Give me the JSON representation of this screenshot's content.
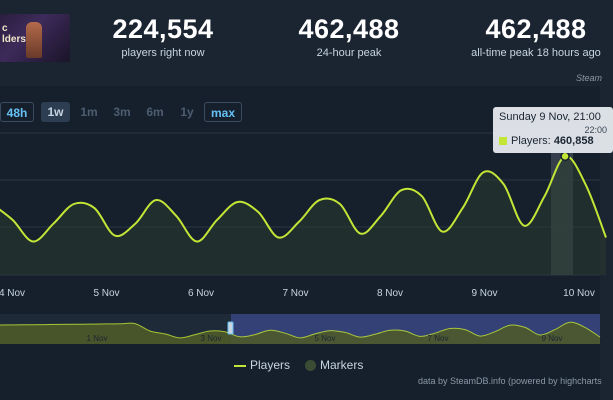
{
  "game": {
    "art_text": "c\nlders"
  },
  "stats": [
    {
      "value": "224,554",
      "label": "players right now"
    },
    {
      "value": "462,488",
      "label": "24-hour peak"
    },
    {
      "value": "462,488",
      "label": "all-time peak 18 hours ago"
    }
  ],
  "section_label": "Steam",
  "range_buttons": [
    "48h",
    "1w",
    "1m",
    "3m",
    "6m",
    "1y",
    "max"
  ],
  "range_selected": "1w",
  "tooltip": {
    "date": "Sunday 9 Nov, 21:00",
    "time": "22:00",
    "series": "Players:",
    "value": "460,858"
  },
  "legend": {
    "players": "Players",
    "markers": "Markers"
  },
  "credit": "data by SteamDB.info (powered by highcharts",
  "navigator": {
    "labels": [
      "1 Nov",
      "3 Nov",
      "5 Nov",
      "7 Nov",
      "9 Nov"
    ]
  },
  "colors": {
    "series": "#c3e636",
    "accent": "#66c0f4",
    "navigator_select": "#3b4a8c"
  },
  "chart_data": {
    "type": "line",
    "series": [
      {
        "name": "Players",
        "values": [
          340000,
          300000,
          245000,
          290000,
          340000,
          330000,
          260000,
          290000,
          350000,
          310000,
          245000,
          300000,
          345000,
          320000,
          255000,
          295000,
          350000,
          340000,
          265000,
          310000,
          375000,
          360000,
          270000,
          330000,
          420000,
          390000,
          285000,
          360000,
          460858,
          390000,
          255000
        ]
      }
    ],
    "x_tick_labels": [
      "4 Nov",
      "5 Nov",
      "6 Nov",
      "7 Nov",
      "8 Nov",
      "9 Nov",
      "10 Nov"
    ],
    "grid": true
  }
}
